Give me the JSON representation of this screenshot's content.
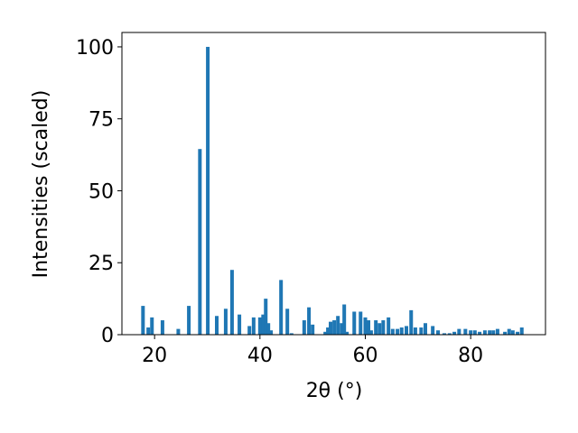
{
  "chart_data": {
    "type": "bar",
    "x_label": "2θ (°)",
    "y_label": "Intensities (scaled)",
    "x": [
      17.8,
      18.8,
      19.5,
      21.5,
      24.5,
      26.5,
      28.6,
      30.1,
      31.8,
      33.5,
      34.7,
      36.1,
      38.0,
      38.8,
      40.0,
      40.6,
      41.1,
      41.6,
      42.1,
      44.0,
      45.2,
      46.0,
      48.4,
      49.3,
      50.0,
      52.4,
      52.9,
      53.4,
      54.1,
      54.8,
      55.5,
      56.0,
      56.5,
      57.9,
      59.1,
      60.0,
      60.6,
      61.1,
      62.0,
      62.7,
      63.4,
      64.4,
      65.2,
      66.1,
      66.9,
      67.8,
      68.7,
      69.5,
      70.6,
      71.4,
      72.8,
      73.8,
      75.0,
      76.0,
      76.9,
      77.8,
      79.0,
      80.0,
      80.8,
      81.7,
      82.7,
      83.6,
      84.3,
      85.1,
      86.5,
      87.3,
      88.0,
      88.9,
      89.7
    ],
    "values": [
      10,
      2.5,
      6,
      5,
      2,
      10,
      64.5,
      100,
      6.5,
      9,
      22.5,
      7,
      3,
      6,
      6,
      7,
      12.5,
      4,
      1.5,
      19,
      9,
      0.5,
      5,
      9.5,
      3.5,
      1,
      2.5,
      4.5,
      5,
      6.5,
      4,
      10.5,
      1,
      8,
      8,
      6,
      5,
      1.5,
      5,
      4,
      5,
      6,
      2,
      2,
      2.5,
      3,
      8.5,
      2.5,
      2.5,
      4,
      3,
      1.5,
      0.5,
      0.5,
      1,
      2,
      2,
      1.5,
      1.5,
      1,
      1.5,
      1.5,
      1.5,
      2,
      1,
      2,
      1.5,
      1,
      2.5
    ],
    "color": "#1f77b4",
    "xlim": [
      13.8,
      94.2
    ],
    "xticks": [
      20,
      40,
      60,
      80
    ],
    "ylim": [
      0,
      105
    ],
    "yticks": [
      0,
      25,
      50,
      75,
      100
    ],
    "grid": false
  }
}
